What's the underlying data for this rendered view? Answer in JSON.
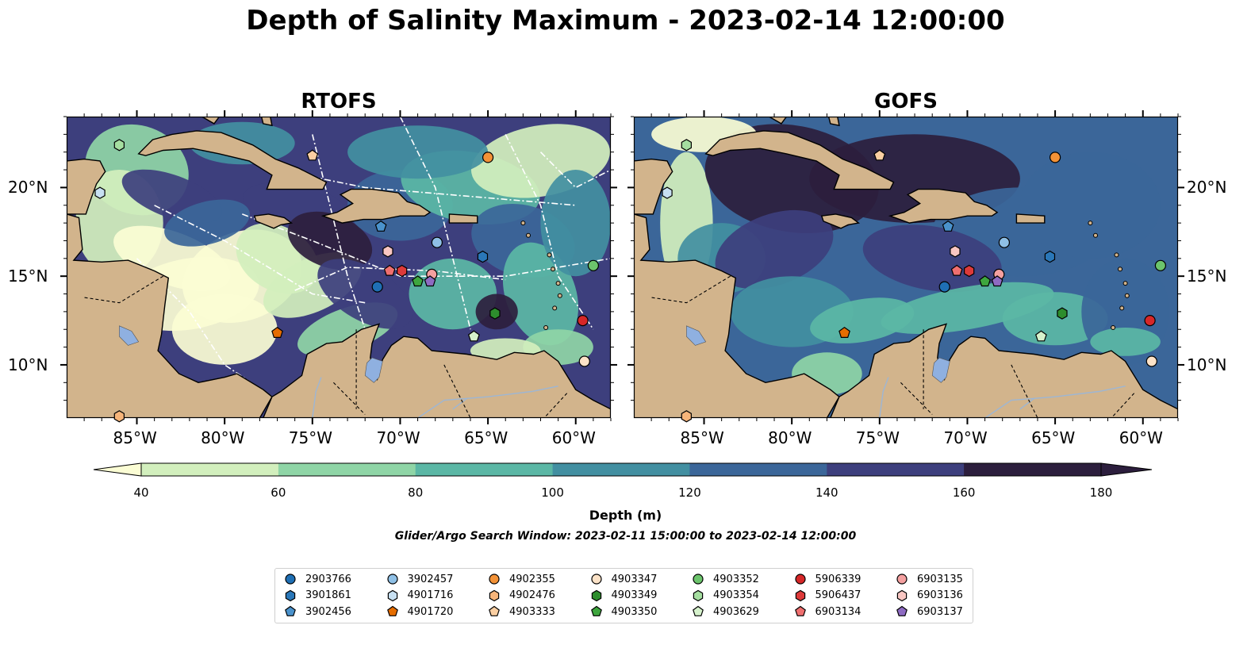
{
  "title": "Depth of Salinity Maximum - 2023-02-14 12:00:00",
  "panels": [
    {
      "title": "RTOFS"
    },
    {
      "title": "GOFS"
    }
  ],
  "axes": {
    "lon_labels": [
      "85°W",
      "80°W",
      "75°W",
      "70°W",
      "65°W",
      "60°W"
    ],
    "lat_labels": [
      "20°N",
      "15°N",
      "10°N"
    ],
    "lon_range": [
      -89,
      -58
    ],
    "lat_range": [
      7,
      24
    ]
  },
  "colorbar": {
    "label": "Depth (m)",
    "ticks": [
      "40",
      "60",
      "80",
      "100",
      "120",
      "140",
      "160",
      "180"
    ],
    "colors": [
      "#fbfdd4",
      "#d2efbd",
      "#8fd5a6",
      "#5bb7a5",
      "#428fa1",
      "#3b6699",
      "#3d3f7d",
      "#2c1e3d"
    ],
    "extend": "both"
  },
  "search_window": "Glider/Argo Search Window: 2023-02-11 15:00:00 to 2023-02-14 12:00:00",
  "colors": {
    "land": "#d2b48c",
    "lake": "#8fb0e0",
    "river": "#9db6d4",
    "track": "#ffffff"
  },
  "legend": [
    {
      "id": "2903766",
      "marker": "circle",
      "color": "#1f6fb4"
    },
    {
      "id": "3901861",
      "marker": "hexagon",
      "color": "#2a77b8"
    },
    {
      "id": "3902456",
      "marker": "pentagon",
      "color": "#4a92cc"
    },
    {
      "id": "3902457",
      "marker": "circle",
      "color": "#8fc0e6"
    },
    {
      "id": "4901716",
      "marker": "hexagon",
      "color": "#c7e0f2"
    },
    {
      "id": "4901720",
      "marker": "pentagon",
      "color": "#e66d00"
    },
    {
      "id": "4902355",
      "marker": "circle",
      "color": "#f39237"
    },
    {
      "id": "4902476",
      "marker": "hexagon",
      "color": "#f7b57a"
    },
    {
      "id": "4903333",
      "marker": "pentagon",
      "color": "#fbcfa2"
    },
    {
      "id": "4903347",
      "marker": "circle",
      "color": "#fde3c8"
    },
    {
      "id": "4903349",
      "marker": "hexagon",
      "color": "#2d8d2d"
    },
    {
      "id": "4903350",
      "marker": "pentagon",
      "color": "#3ea63e"
    },
    {
      "id": "4903352",
      "marker": "circle",
      "color": "#6cc46c"
    },
    {
      "id": "4903354",
      "marker": "hexagon",
      "color": "#a5dea0"
    },
    {
      "id": "4903629",
      "marker": "pentagon",
      "color": "#d6f2cc"
    },
    {
      "id": "5906339",
      "marker": "circle",
      "color": "#d62728"
    },
    {
      "id": "5906437",
      "marker": "hexagon",
      "color": "#dd3a3a"
    },
    {
      "id": "6903134",
      "marker": "pentagon",
      "color": "#ef6f6f"
    },
    {
      "id": "6903135",
      "marker": "circle",
      "color": "#f4a0a0"
    },
    {
      "id": "6903136",
      "marker": "hexagon",
      "color": "#f8c6c2"
    },
    {
      "id": "6903137",
      "marker": "pentagon",
      "color": "#8e6bc2"
    }
  ],
  "floats": [
    {
      "id": "4903354",
      "lon": -86.0,
      "lat": 22.4
    },
    {
      "id": "4901716",
      "lon": -87.1,
      "lat": 19.7
    },
    {
      "id": "4903333",
      "lon": -75.0,
      "lat": 21.8
    },
    {
      "id": "4902355",
      "lon": -65.0,
      "lat": 21.7
    },
    {
      "id": "3902456",
      "lon": -71.1,
      "lat": 17.8
    },
    {
      "id": "3902457",
      "lon": -67.9,
      "lat": 16.9
    },
    {
      "id": "6903136",
      "lon": -70.7,
      "lat": 16.4
    },
    {
      "id": "3901861",
      "lon": -65.3,
      "lat": 16.1
    },
    {
      "id": "4903352",
      "lon": -59.0,
      "lat": 15.6
    },
    {
      "id": "6903134",
      "lon": -70.6,
      "lat": 15.3
    },
    {
      "id": "5906437",
      "lon": -69.9,
      "lat": 15.3
    },
    {
      "id": "6903135",
      "lon": -68.2,
      "lat": 15.1
    },
    {
      "id": "6903137",
      "lon": -68.3,
      "lat": 14.7
    },
    {
      "id": "4903350",
      "lon": -69.0,
      "lat": 14.7
    },
    {
      "id": "2903766",
      "lon": -71.3,
      "lat": 14.4
    },
    {
      "id": "4903349",
      "lon": -64.6,
      "lat": 12.9
    },
    {
      "id": "5906339",
      "lon": -59.6,
      "lat": 12.5
    },
    {
      "id": "4901720",
      "lon": -77.0,
      "lat": 11.8
    },
    {
      "id": "4903629",
      "lon": -65.8,
      "lat": 11.6
    },
    {
      "id": "4903347",
      "lon": -59.5,
      "lat": 10.2
    },
    {
      "id": "4902476",
      "lon": -86.0,
      "lat": 7.1
    }
  ]
}
